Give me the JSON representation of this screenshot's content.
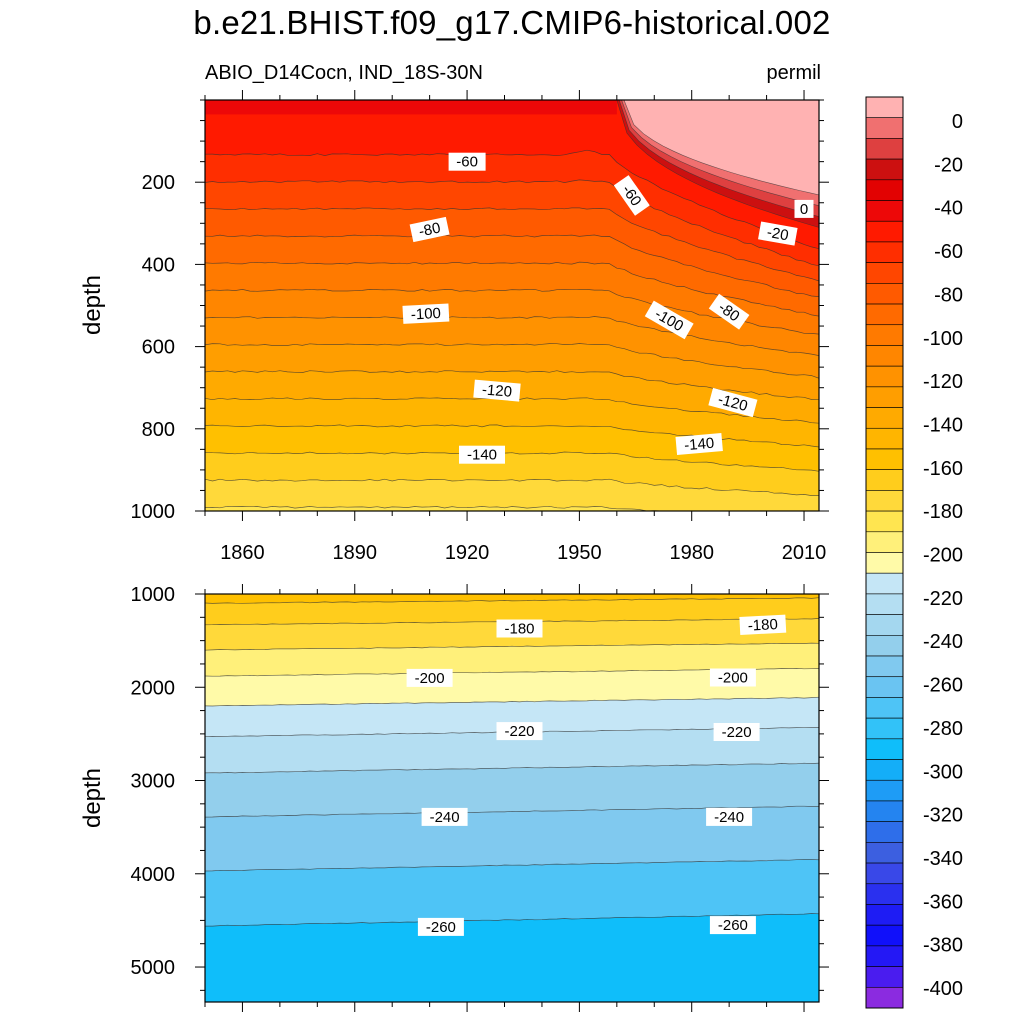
{
  "title": "b.e21.BHIST.f09_g17.CMIP6-historical.002",
  "subtitle_left": "ABIO_D14Cocn, IND_18S-30N",
  "subtitle_right": "permil",
  "chart_data": [
    {
      "type": "heatmap",
      "name": "upper",
      "ylabel": "depth",
      "x_ticks": [
        "1860",
        "1890",
        "1920",
        "1950",
        "1980",
        "2010"
      ],
      "x_tick_values": [
        1860,
        1890,
        1920,
        1950,
        1980,
        2010
      ],
      "y_ticks": [
        "200",
        "400",
        "600",
        "800",
        "1000"
      ],
      "y_tick_values": [
        200,
        400,
        600,
        800,
        1000
      ],
      "xlim": [
        1850,
        2014
      ],
      "ylim": [
        0,
        1000
      ],
      "y_inverted": true,
      "contour_labels": [
        {
          "text": "-60",
          "x": 1920,
          "y": 150
        },
        {
          "text": "-60",
          "x": 1964,
          "y": 232
        },
        {
          "text": "0",
          "x": 2010,
          "y": 265
        },
        {
          "text": "-20",
          "x": 2003,
          "y": 325
        },
        {
          "text": "-80",
          "x": 1910,
          "y": 315
        },
        {
          "text": "-100",
          "x": 1909,
          "y": 520
        },
        {
          "text": "-100",
          "x": 1974,
          "y": 535
        },
        {
          "text": "-80",
          "x": 1990,
          "y": 515
        },
        {
          "text": "-120",
          "x": 1928,
          "y": 707
        },
        {
          "text": "-120",
          "x": 1991,
          "y": 736
        },
        {
          "text": "-140",
          "x": 1924,
          "y": 863
        },
        {
          "text": "-140",
          "x": 1982,
          "y": 837
        }
      ]
    },
    {
      "type": "heatmap",
      "name": "lower",
      "ylabel": "depth",
      "y_ticks": [
        "1000",
        "2000",
        "3000",
        "4000",
        "5000"
      ],
      "y_tick_values": [
        1000,
        2000,
        3000,
        4000,
        5000
      ],
      "xlim": [
        1850,
        2014
      ],
      "ylim": [
        1000,
        5375
      ],
      "y_inverted": true,
      "contour_labels": [
        {
          "text": "-180",
          "x": 1934,
          "y": 1370
        },
        {
          "text": "-180",
          "x": 1999,
          "y": 1330
        },
        {
          "text": "-200",
          "x": 1910,
          "y": 1900
        },
        {
          "text": "-200",
          "x": 1991,
          "y": 1895
        },
        {
          "text": "-220",
          "x": 1934,
          "y": 2470
        },
        {
          "text": "-220",
          "x": 1992,
          "y": 2480
        },
        {
          "text": "-240",
          "x": 1914,
          "y": 3390
        },
        {
          "text": "-240",
          "x": 1990,
          "y": 3390
        },
        {
          "text": "-260",
          "x": 1913,
          "y": 4570
        },
        {
          "text": "-260",
          "x": 1991,
          "y": 4550
        }
      ]
    }
  ],
  "colorbar": {
    "labels": [
      "0",
      "-20",
      "-40",
      "-60",
      "-80",
      "-100",
      "-120",
      "-140",
      "-160",
      "-180",
      "-200",
      "-220",
      "-240",
      "-260",
      "-280",
      "-300",
      "-320",
      "-340",
      "-360",
      "-380",
      "-400"
    ],
    "colors": [
      "#ffb2b2",
      "#f07070",
      "#de4040",
      "#cc1010",
      "#e20202",
      "#ed0808",
      "#ff1a00",
      "#ff2e00",
      "#ff4600",
      "#ff5a00",
      "#ff6a00",
      "#ff7a00",
      "#ff8600",
      "#ff9200",
      "#ff9e00",
      "#ffaa00",
      "#ffb500",
      "#ffc000",
      "#ffcd1c",
      "#ffd93a",
      "#ffe550",
      "#fff07a",
      "#fffaa8",
      "#c5e6f6",
      "#b4def2",
      "#a4d7ef",
      "#93cfec",
      "#80c9ef",
      "#6ac4f2",
      "#4ec4f6",
      "#32c2f8",
      "#0fbefa",
      "#14aef8",
      "#1e9cf6",
      "#2484f0",
      "#2e6eea",
      "#3c5fe0",
      "#3948e8",
      "#2a30ef",
      "#1e1cf4",
      "#1010fa",
      "#2418f5",
      "#4a1cef",
      "#8b2be0"
    ]
  }
}
